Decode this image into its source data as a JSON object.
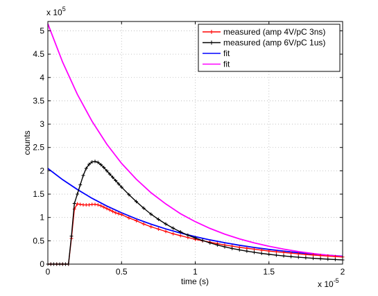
{
  "chart_data": {
    "type": "line",
    "xlabel": "time (s)",
    "ylabel": "counts",
    "x_multiplier": "x 10",
    "x_exponent": "-5",
    "y_multiplier": "x 10",
    "y_exponent": "5",
    "xlim": [
      0,
      2e-05
    ],
    "ylim": [
      0,
      520000
    ],
    "x_ticks": [
      0,
      5e-06,
      1e-05,
      1.5e-05,
      2e-05
    ],
    "x_tick_labels": [
      "0",
      "0.5",
      "1",
      "1.5",
      "2"
    ],
    "y_ticks": [
      0,
      50000,
      100000,
      150000,
      200000,
      250000,
      300000,
      350000,
      400000,
      450000,
      500000
    ],
    "y_tick_labels": [
      "0",
      "0.5",
      "1",
      "1.5",
      "2",
      "2.5",
      "3",
      "3.5",
      "4",
      "4.5",
      "5"
    ],
    "grid": true,
    "legend_position": "top-right",
    "series": [
      {
        "name": "measured (amp 4V/pC 3ns)",
        "color": "#ff0000",
        "marker": "plus",
        "x": [
          0,
          2e-07,
          4e-07,
          6e-07,
          8e-07,
          1e-06,
          1.2e-06,
          1.4e-06,
          1.6e-06,
          1.8e-06,
          2e-06,
          2.2e-06,
          2.4e-06,
          2.6e-06,
          2.8e-06,
          3e-06,
          3.2e-06,
          3.4e-06,
          3.6e-06,
          3.8e-06,
          4e-06,
          4.2e-06,
          4.4e-06,
          4.6e-06,
          4.8e-06,
          5e-06,
          5.5e-06,
          6e-06,
          6.5e-06,
          7e-06,
          7.5e-06,
          8e-06,
          8.5e-06,
          9e-06,
          9.5e-06,
          1e-05,
          1.05e-05,
          1.1e-05,
          1.15e-05,
          1.2e-05,
          1.25e-05,
          1.3e-05,
          1.35e-05,
          1.4e-05,
          1.45e-05,
          1.5e-05,
          1.55e-05,
          1.6e-05,
          1.65e-05,
          1.7e-05,
          1.75e-05,
          1.8e-05,
          1.85e-05,
          1.9e-05,
          1.95e-05,
          2e-05
        ],
        "y": [
          0,
          0,
          0,
          0,
          0,
          0,
          0,
          0,
          55000,
          118000,
          129000,
          128000,
          127000,
          127000,
          127000,
          128000,
          128000,
          127000,
          125000,
          122000,
          119000,
          116000,
          113000,
          110000,
          108000,
          106000,
          99000,
          93000,
          86000,
          80000,
          75000,
          70000,
          65000,
          61000,
          57000,
          53000,
          50000,
          47000,
          44000,
          41000,
          38500,
          36000,
          34000,
          32000,
          30000,
          28000,
          26500,
          25000,
          23500,
          22000,
          20500,
          19500,
          18300,
          17200,
          16200,
          15200
        ]
      },
      {
        "name": "measured (amp 6V/pC 1us)",
        "color": "#000000",
        "marker": "plus",
        "x": [
          0,
          2e-07,
          4e-07,
          6e-07,
          8e-07,
          1e-06,
          1.2e-06,
          1.4e-06,
          1.6e-06,
          1.8e-06,
          2e-06,
          2.2e-06,
          2.4e-06,
          2.6e-06,
          2.8e-06,
          3e-06,
          3.2e-06,
          3.4e-06,
          3.6e-06,
          3.8e-06,
          4e-06,
          4.2e-06,
          4.4e-06,
          4.6e-06,
          4.8e-06,
          5e-06,
          5.5e-06,
          6e-06,
          6.5e-06,
          7e-06,
          7.5e-06,
          8e-06,
          8.5e-06,
          9e-06,
          9.5e-06,
          1e-05,
          1.05e-05,
          1.1e-05,
          1.15e-05,
          1.2e-05,
          1.25e-05,
          1.3e-05,
          1.35e-05,
          1.4e-05,
          1.45e-05,
          1.5e-05,
          1.55e-05,
          1.6e-05,
          1.65e-05,
          1.7e-05,
          1.75e-05,
          1.8e-05,
          1.85e-05,
          1.9e-05,
          1.95e-05,
          2e-05
        ],
        "y": [
          0,
          0,
          0,
          0,
          0,
          0,
          0,
          0,
          60000,
          130000,
          150000,
          170000,
          190000,
          205000,
          214000,
          219000,
          220000,
          218000,
          213000,
          207000,
          200000,
          193000,
          186000,
          179000,
          172000,
          165000,
          149000,
          134000,
          120000,
          107000,
          96000,
          86000,
          77000,
          69000,
          62000,
          56000,
          50500,
          45500,
          41000,
          37000,
          33500,
          30500,
          27800,
          25300,
          23000,
          21000,
          19200,
          17600,
          16100,
          14800,
          13600,
          12500,
          11500,
          10600,
          9800,
          9000
        ]
      },
      {
        "name": "fit",
        "color": "#0000ff",
        "marker": "none",
        "x": [
          0,
          1e-06,
          2e-06,
          3e-06,
          4e-06,
          5e-06,
          6e-06,
          7e-06,
          8e-06,
          9e-06,
          1e-05,
          1.1e-05,
          1.2e-05,
          1.3e-05,
          1.4e-05,
          1.5e-05,
          1.6e-05,
          1.7e-05,
          1.8e-05,
          1.9e-05,
          2e-05
        ],
        "y": [
          205000,
          181000,
          160000,
          141000,
          124500,
          110000,
          97000,
          85600,
          75500,
          66600,
          58800,
          51900,
          45800,
          40400,
          35700,
          31500,
          27800,
          24500,
          21600,
          19100,
          16900
        ]
      },
      {
        "name": "fit",
        "color": "#ff00ff",
        "marker": "none",
        "x": [
          0,
          1e-06,
          2e-06,
          3e-06,
          4e-06,
          5e-06,
          6e-06,
          7e-06,
          8e-06,
          9e-06,
          1e-05,
          1.1e-05,
          1.2e-05,
          1.3e-05,
          1.4e-05,
          1.5e-05,
          1.6e-05,
          1.7e-05,
          1.8e-05,
          1.9e-05,
          2e-05
        ],
        "y": [
          515000,
          433000,
          364000,
          306000,
          257000,
          216000,
          182000,
          153000,
          129000,
          108000,
          91000,
          76500,
          64300,
          54100,
          45500,
          38200,
          32100,
          27000,
          22700,
          19100,
          16100
        ]
      }
    ]
  }
}
